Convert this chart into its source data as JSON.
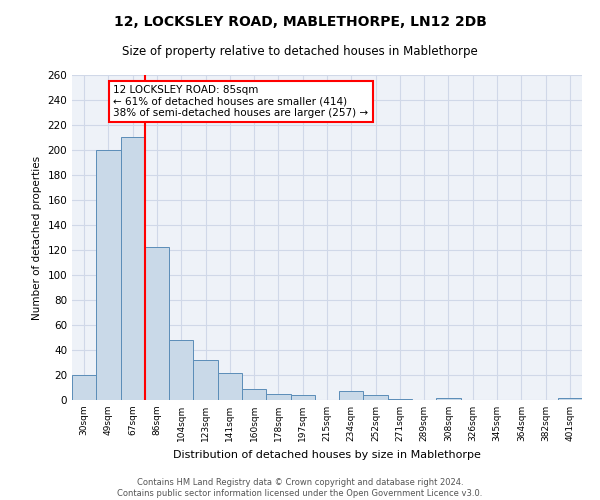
{
  "title": "12, LOCKSLEY ROAD, MABLETHORPE, LN12 2DB",
  "subtitle": "Size of property relative to detached houses in Mablethorpe",
  "xlabel": "Distribution of detached houses by size in Mablethorpe",
  "ylabel": "Number of detached properties",
  "categories": [
    "30sqm",
    "49sqm",
    "67sqm",
    "86sqm",
    "104sqm",
    "123sqm",
    "141sqm",
    "160sqm",
    "178sqm",
    "197sqm",
    "215sqm",
    "234sqm",
    "252sqm",
    "271sqm",
    "289sqm",
    "308sqm",
    "326sqm",
    "345sqm",
    "364sqm",
    "382sqm",
    "401sqm"
  ],
  "values": [
    20,
    200,
    210,
    122,
    48,
    32,
    22,
    9,
    5,
    4,
    0,
    7,
    4,
    1,
    0,
    2,
    0,
    0,
    0,
    0,
    2
  ],
  "bar_color": "#c9d9e8",
  "bar_edge_color": "#5b8db8",
  "grid_color": "#d0d8e8",
  "background_color": "#eef2f8",
  "red_line_x": 2.5,
  "annotation_text": "12 LOCKSLEY ROAD: 85sqm\n← 61% of detached houses are smaller (414)\n38% of semi-detached houses are larger (257) →",
  "annotation_box_color": "white",
  "annotation_box_edge_color": "red",
  "footer_line1": "Contains HM Land Registry data © Crown copyright and database right 2024.",
  "footer_line2": "Contains public sector information licensed under the Open Government Licence v3.0.",
  "ylim": [
    0,
    260
  ],
  "yticks": [
    0,
    20,
    40,
    60,
    80,
    100,
    120,
    140,
    160,
    180,
    200,
    220,
    240,
    260
  ]
}
